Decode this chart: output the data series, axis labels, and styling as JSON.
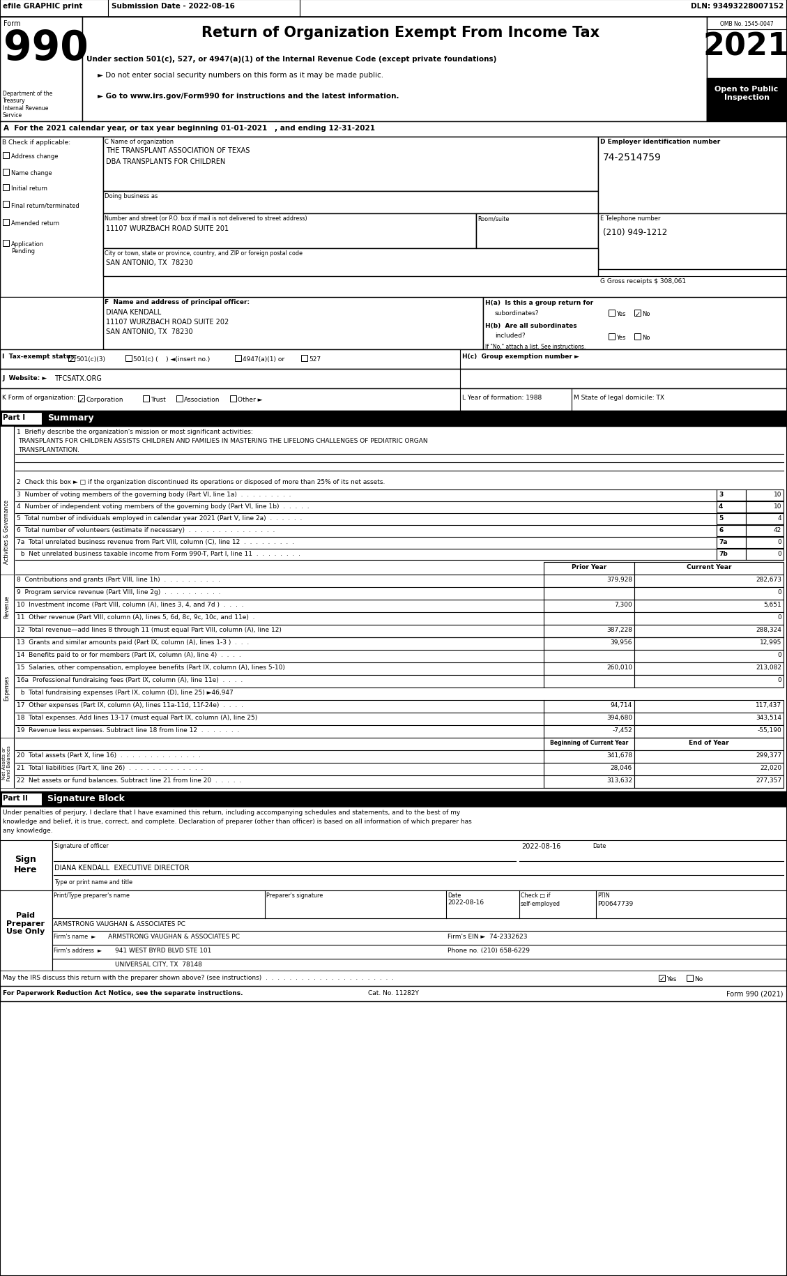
{
  "title": "Return of Organization Exempt From Income Tax",
  "subtitle1": "Under section 501(c), 527, or 4947(a)(1) of the Internal Revenue Code (except private foundations)",
  "subtitle2": "► Do not enter social security numbers on this form as it may be made public.",
  "subtitle3": "► Go to www.irs.gov/Form990 for instructions and the latest information.",
  "omb": "OMB No. 1545-0047",
  "year_line": "A  For the 2021 calendar year, or tax year beginning 01-01-2021   , and ending 12-31-2021",
  "check_items": [
    "Address change",
    "Name change",
    "Initial return",
    "Final return/terminated",
    "Amended return",
    "Application\nPending"
  ],
  "line2_label": "2  Check this box ►  if the organization discontinued its operations or disposed of more than 25% of its net assets.",
  "line16b_label": "  b  Total fundraising expenses (Part IX, column (D), line 25) ►46,947",
  "sig_perjury1": "Under penalties of perjury, I declare that I have examined this return, including accompanying schedules and statements, and to the best of my",
  "sig_perjury2": "knowledge and belief, it is true, correct, and complete. Declaration of preparer (other than officer) is based on all information of which preparer has",
  "sig_perjury3": "any knowledge.",
  "bg_color": "#ffffff"
}
